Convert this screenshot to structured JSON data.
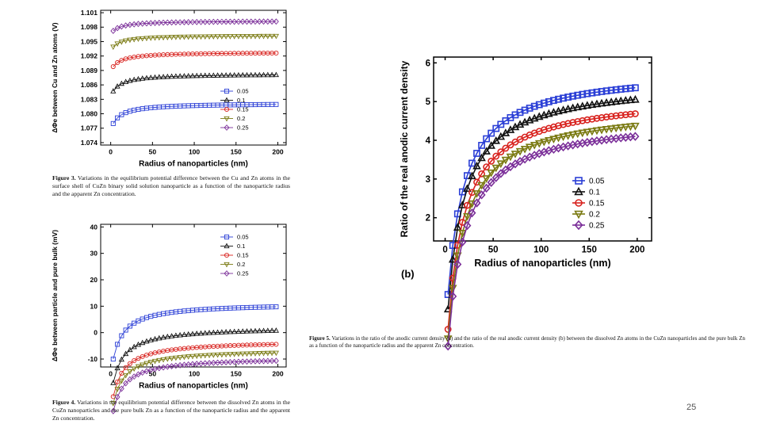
{
  "page_number": "25",
  "captions": {
    "fig3_label": "Figure 3.",
    "fig3_text": "Variations in the equilibrium potential difference between the Cu and Zn atoms in the surface shell of CuZn binary solid solution nanoparticle as a function of the nanoparticle radius and the apparent Zn concentration.",
    "fig4_label": "Figure 4.",
    "fig4_text": "Variations in the equilibrium potential difference between the dissolved Zn atoms in the CuZn nanoparticles and the pure bulk Zn as a function of the nanoparticle radius and the apparent Zn concentration.",
    "fig5_label": "Figure 5.",
    "fig5_text": "Variations in the ratio of the anodic current density (a) and the ratio of the real anodic current density (b) between the dissolved Zn atoms in the CuZn nanoparticles and the pure bulk Zn as a function of the nanoparticle radius and the apparent Zn concentration."
  },
  "chart_data": [
    {
      "id": "fig3",
      "type": "line",
      "xlabel": "Radius of nanoparticles (nm)",
      "ylabel": "ΔΦe between Cu and Zn atoms (V)",
      "xlim": [
        -12,
        210
      ],
      "ylim": [
        1.0735,
        1.1015
      ],
      "xticks": [
        0,
        50,
        100,
        150,
        200
      ],
      "yticks": [
        1.074,
        1.077,
        1.08,
        1.083,
        1.086,
        1.089,
        1.092,
        1.095,
        1.098,
        1.101
      ],
      "ytick_labels": [
        "1.074",
        "1.077",
        "1.080",
        "1.083",
        "1.086",
        "1.089",
        "1.092",
        "1.095",
        "1.098",
        "1.101"
      ],
      "legend_position": "bottom-right",
      "series": [
        {
          "name": "0.05",
          "y_bulk": 1.0822,
          "amp": 0.0055,
          "k": 10,
          "marker": "square",
          "color": "#2b3fd6"
        },
        {
          "name": "0.1",
          "y_bulk": 1.0883,
          "amp": 0.0047,
          "k": 10,
          "marker": "triangle-up",
          "color": "#111111"
        },
        {
          "name": "0.15",
          "y_bulk": 1.0928,
          "amp": 0.0039,
          "k": 10,
          "marker": "circle",
          "color": "#d8231f"
        },
        {
          "name": "0.2",
          "y_bulk": 1.0963,
          "amp": 0.0031,
          "k": 10,
          "marker": "triangle-down",
          "color": "#7a7a12"
        },
        {
          "name": "0.25",
          "y_bulk": 1.0993,
          "amp": 0.0027,
          "k": 10,
          "marker": "diamond",
          "color": "#7b2f99"
        }
      ],
      "x_points": [
        3,
        8,
        13,
        18,
        23,
        28,
        33,
        38,
        43,
        48,
        53,
        58,
        63,
        68,
        73,
        78,
        83,
        88,
        93,
        98,
        103,
        108,
        113,
        118,
        123,
        128,
        133,
        138,
        143,
        148,
        153,
        158,
        163,
        168,
        173,
        178,
        183,
        188,
        193,
        198
      ]
    },
    {
      "id": "fig4",
      "type": "line",
      "xlabel": "Radius of nanoparticles (nm)",
      "ylabel": "ΔΦe between particle and pure bulk (mV)",
      "xlim": [
        -12,
        210
      ],
      "ylim": [
        -13,
        41
      ],
      "xticks": [
        0,
        50,
        100,
        150,
        200
      ],
      "yticks": [
        -10,
        0,
        10,
        20,
        30,
        40
      ],
      "ytick_labels": [
        "-10",
        "0",
        "10",
        "20",
        "30",
        "40"
      ],
      "legend_position": "top-right",
      "series": [
        {
          "name": "0.05",
          "y_bulk": 11.2,
          "amp": 27,
          "k": 11,
          "marker": "square",
          "color": "#2b3fd6"
        },
        {
          "name": "0.1",
          "y_bulk": 2.2,
          "amp": 27,
          "k": 11,
          "marker": "triangle-up",
          "color": "#111111"
        },
        {
          "name": "0.15",
          "y_bulk": -3.0,
          "amp": 27,
          "k": 11,
          "marker": "circle",
          "color": "#d8231f"
        },
        {
          "name": "0.2",
          "y_bulk": -6.3,
          "amp": 26,
          "k": 11,
          "marker": "triangle-down",
          "color": "#7a7a12"
        },
        {
          "name": "0.25",
          "y_bulk": -9.3,
          "amp": 26,
          "k": 11,
          "marker": "diamond",
          "color": "#7b2f99"
        }
      ],
      "x_points": [
        3,
        8,
        13,
        18,
        23,
        28,
        33,
        38,
        43,
        48,
        53,
        58,
        63,
        68,
        73,
        78,
        83,
        88,
        93,
        98,
        103,
        108,
        113,
        118,
        123,
        128,
        133,
        138,
        143,
        148,
        153,
        158,
        163,
        168,
        173,
        178,
        183,
        188,
        193,
        198
      ]
    },
    {
      "id": "fig5b",
      "type": "line",
      "panel_label": "(b)",
      "xlabel": "Radius of nanoparticles (nm)",
      "ylabel": "Ratio of the real anodic current density",
      "xlim": [
        -12,
        215
      ],
      "ylim": [
        1.4,
        6.15
      ],
      "xticks": [
        0,
        50,
        100,
        150,
        200
      ],
      "yticks": [
        2,
        3,
        4,
        5,
        6
      ],
      "ytick_labels": [
        "2",
        "3",
        "4",
        "5",
        "6"
      ],
      "legend_position": "bottom-right",
      "series": [
        {
          "name": "0.05",
          "y_bulk": 5.85,
          "amp": 7.0,
          "k": 15,
          "marker": "square",
          "color": "#2b3fd6"
        },
        {
          "name": "0.1",
          "y_bulk": 5.55,
          "amp": 7.1,
          "k": 15,
          "marker": "triangle-up",
          "color": "#111111"
        },
        {
          "name": "0.15",
          "y_bulk": 5.2,
          "amp": 7.3,
          "k": 15,
          "marker": "circle",
          "color": "#d8231f"
        },
        {
          "name": "0.2",
          "y_bulk": 4.88,
          "amp": 7.2,
          "k": 15,
          "marker": "triangle-down",
          "color": "#7a7a12"
        },
        {
          "name": "0.25",
          "y_bulk": 4.6,
          "amp": 7.1,
          "k": 15,
          "marker": "diamond",
          "color": "#7b2f99"
        }
      ],
      "x_points": [
        3,
        8,
        13,
        18,
        23,
        28,
        33,
        38,
        43,
        48,
        53,
        58,
        63,
        68,
        73,
        78,
        83,
        88,
        93,
        98,
        103,
        108,
        113,
        118,
        123,
        128,
        133,
        138,
        143,
        148,
        153,
        158,
        163,
        168,
        173,
        178,
        183,
        188,
        193,
        198
      ]
    }
  ]
}
